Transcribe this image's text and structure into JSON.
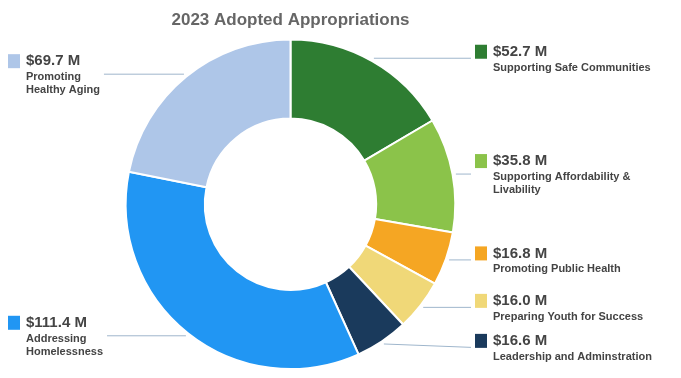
{
  "chart_data": {
    "type": "doughnut",
    "title": "2023 Adopted Appropriations",
    "categories": [
      "Supporting Safe Communities",
      "Supporting Affordability &\nLivability",
      "Promoting Public Health",
      "Preparing Youth for Success",
      "Leadership and Adminstration",
      "Addressing\nHomelessness",
      "Promoting\nHealthy Aging"
    ],
    "values": [
      52.7,
      35.8,
      16.8,
      16.0,
      16.6,
      111.4,
      69.7
    ],
    "value_labels": [
      "$52.7 M",
      "$35.8 M",
      "$16.8 M",
      "$16.0 M",
      "$16.6 M",
      "$111.4 M",
      "$69.7 M"
    ],
    "colors": [
      "#2e7d32",
      "#8bc34a",
      "#f5a623",
      "#f0d878",
      "#1a3a5c",
      "#2196f3",
      "#aec6e8"
    ],
    "data_labels": true
  }
}
